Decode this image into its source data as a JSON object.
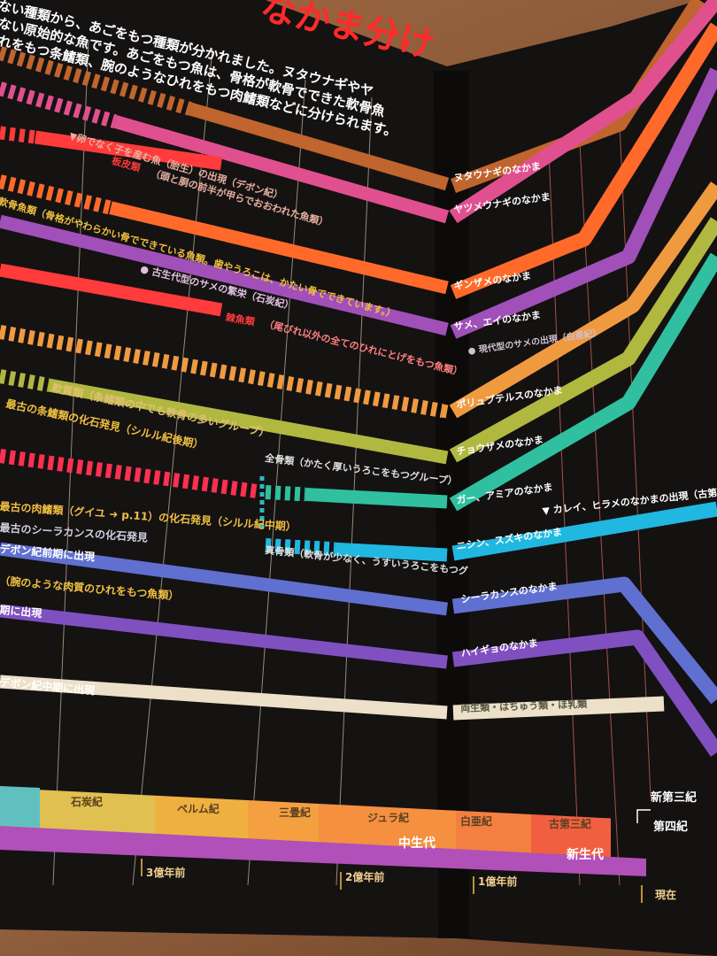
{
  "title": "なかま分け",
  "intro": [
    "ない種類から、あごをもつ種類が分かれました。ヌタウナギやヤ",
    "ない原始的な魚です。あごをもつ魚は、骨格が軟骨でできた軟骨魚",
    "れをもつ条鰭類、腕のようなひれをもつ肉鰭類などに分けられます。"
  ],
  "left_notes": [
    {
      "text": "▼卵でなく子を産む魚（胎生）の出現（デボン紀）",
      "color": "#e8b0a0"
    },
    {
      "text": "板皮類",
      "color": "#ff3b3b"
    },
    {
      "text": "（頭と胴の前半が甲らでおおわれた魚類）",
      "color": "#e8b0a0"
    },
    {
      "text": "軟骨魚類（骨格がやわらかい骨でできている魚類。歯やうろこは、かたい骨でできています。）",
      "color": "#f0c040"
    },
    {
      "text": "● 古生代型のサメの繁栄（石炭紀）",
      "color": "#e0c0e0"
    },
    {
      "text": "棘魚類",
      "color": "#ff3b3b"
    },
    {
      "text": "（尾びれ以外の全てのひれにとげをもつ魚類）",
      "color": "#ff8080"
    },
    {
      "text": "軟質類（条鰭類の中でも軟骨の多いグループ）",
      "color": "#e0c070"
    },
    {
      "text": "最古の条鰭類の化石発見（シルル紀後期）",
      "color": "#f0c040"
    },
    {
      "text": "全骨類（かたく厚いうろこをもつグループ）",
      "color": "#e0e0e0"
    },
    {
      "text": "最古の肉鰭類（グイユ ➜ p.11）の化石発見（シルル紀中期）",
      "color": "#f0c040"
    },
    {
      "text": "真骨類（軟骨が少なく、うすいうろこをもつグ",
      "color": "#e0e0e0"
    },
    {
      "text": "最古のシーラカンスの化石発見",
      "color": "#d0d0e0"
    },
    {
      "text": "デボン紀前期に出現",
      "color": "#ffffff"
    },
    {
      "text": "（腕のような肉質のひれをもつ魚類）",
      "color": "#f0c040"
    },
    {
      "text": "期に出現",
      "color": "#ffffff"
    },
    {
      "text": "デボン紀中期に出現",
      "color": "#ffffff"
    }
  ],
  "groups": [
    {
      "name": "ヌタウナギのなかま",
      "color": "#c0652e"
    },
    {
      "name": "ヤツメウナギのなかま",
      "color": "#e0508f"
    },
    {
      "name": "ギンザメのなかま",
      "color": "#ff6a2a"
    },
    {
      "name": "サメ、エイのなかま",
      "color": "#a050b8"
    },
    {
      "name": "ポリュプテルスのなかま",
      "color": "#f09a40"
    },
    {
      "name": "チョウザメのなかま",
      "color": "#b0b840"
    },
    {
      "name": "ガー、アミアのなかま",
      "color": "#30c0a0"
    },
    {
      "name": "ニシン、スズキのなかま",
      "color": "#20b8e0"
    },
    {
      "name": "シーラカンスのなかま",
      "color": "#6070d0"
    },
    {
      "name": "ハイギョのなかま",
      "color": "#8050c0"
    },
    {
      "name": "両生類・はちゅう類・ほ乳類",
      "color": "#ece0c8"
    }
  ],
  "right_notes": [
    "● 現代型のサメの出現（白亜紀）",
    "▼ カレイ、ヒラメのなかまの出現（古第三紀"
  ],
  "periods": [
    {
      "name": "石炭紀",
      "color": "#a8d060"
    },
    {
      "name": "ペルム紀",
      "color": "#e0c050"
    },
    {
      "name": "三畳紀",
      "color": "#f0b040"
    },
    {
      "name": "ジュラ紀",
      "color": "#f4a040"
    },
    {
      "name": "白亜紀",
      "color": "#f59040"
    },
    {
      "name": "古第三紀",
      "color": "#f38040"
    },
    {
      "name": "新第三紀",
      "color": "#f06040"
    },
    {
      "name": "第四紀",
      "color": "#f06040"
    }
  ],
  "eras": [
    {
      "name": "中生代",
      "color": "#c060c8"
    },
    {
      "name": "新生代",
      "color": "#b050c0"
    }
  ],
  "ticks": [
    "3億年前",
    "2億年前",
    "1億年前",
    "現在"
  ]
}
